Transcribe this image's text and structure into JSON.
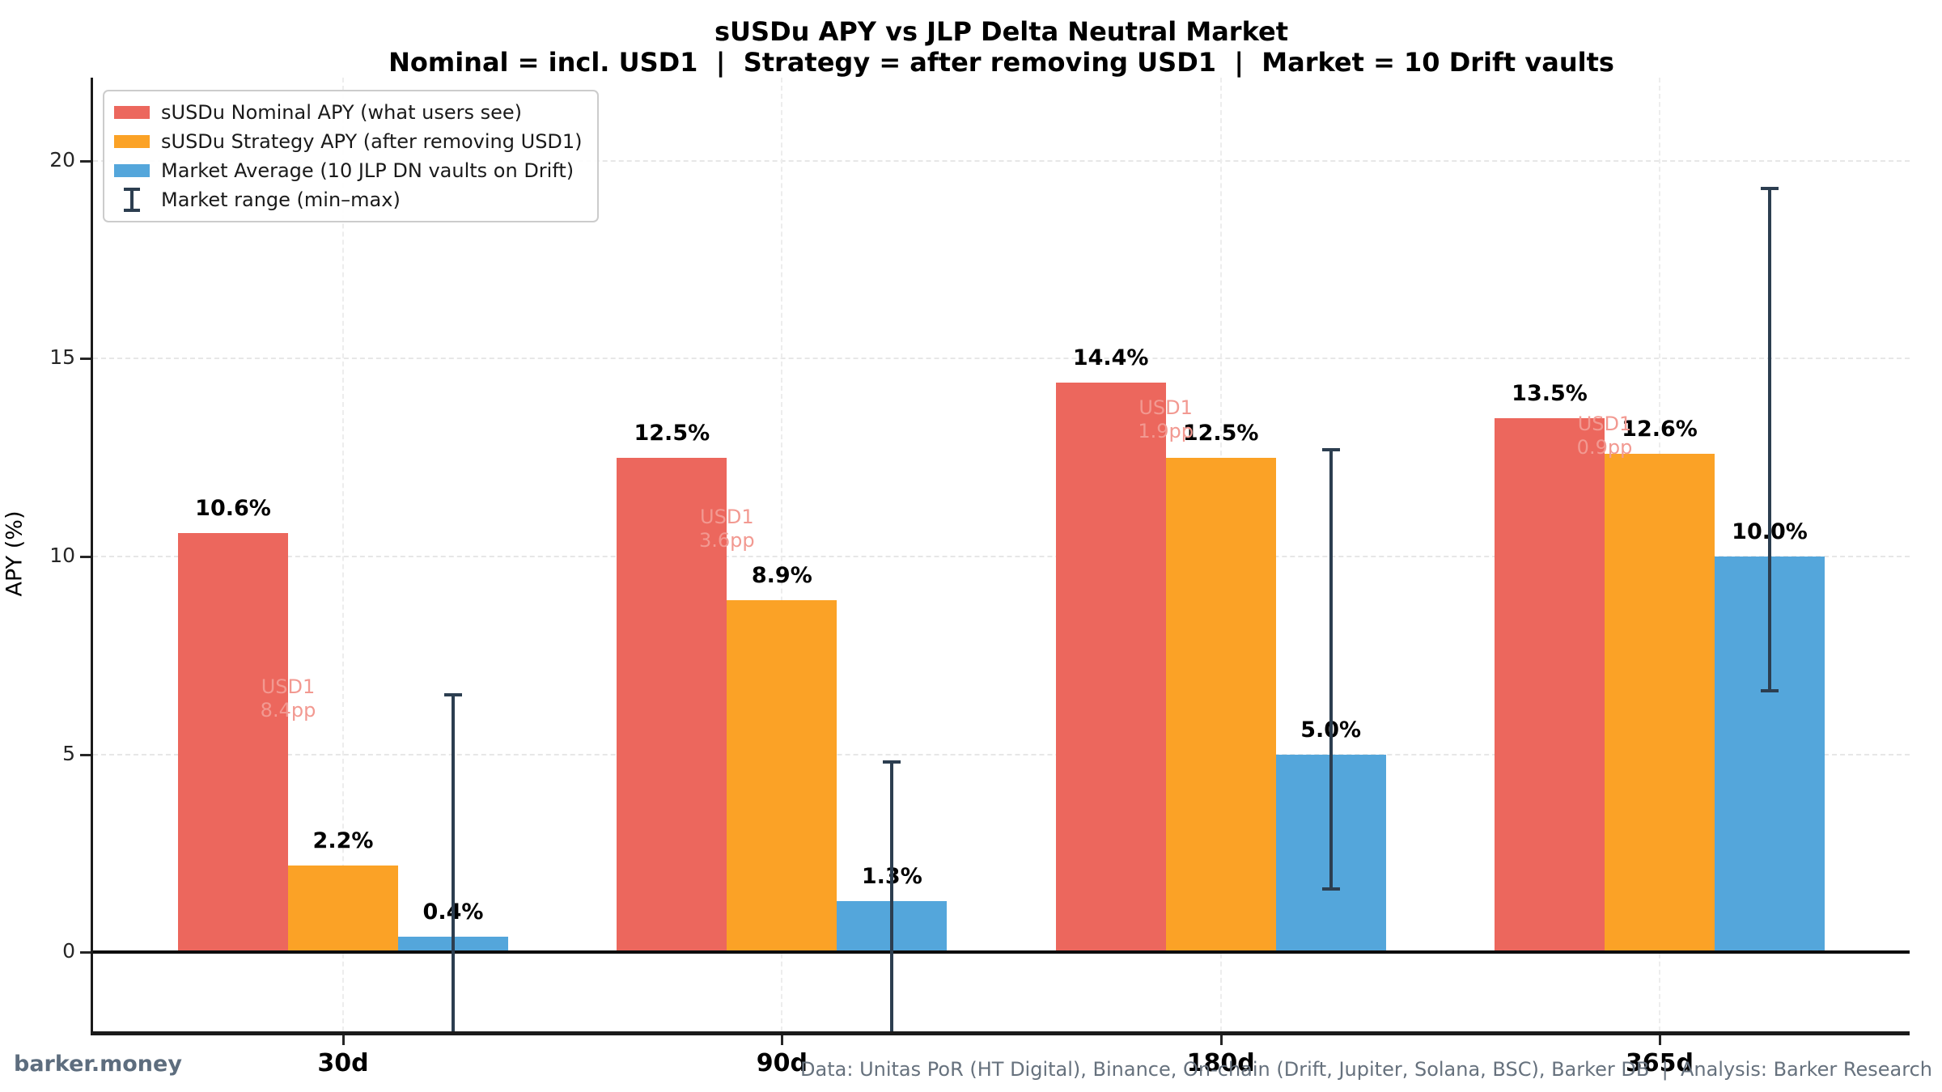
{
  "title": "sUSDu APY vs JLP Delta Neutral Market",
  "subtitle": "Nominal = incl. USD1  |  Strategy = after removing USD1  |  Market = 10 Drift vaults",
  "ylabel": "APY (%)",
  "footer": {
    "brand": "barker.money",
    "credits": "Data: Unitas PoR (HT Digital), Binance, On-chain (Drift, Jupiter, Solana, BSC), Barker DB  |  Analysis: Barker Research"
  },
  "colors": {
    "nominal": "#ec675d",
    "strategy": "#fba226",
    "market": "#54a6db",
    "errorbar": "#2c3e50",
    "annotation": "#f29991",
    "zero_line": "#0d0d0d",
    "spine": "#1a1a1a",
    "grid": "#e7e7e7"
  },
  "legend": {
    "items": [
      {
        "type": "patch",
        "key": "nominal",
        "color": "#ec675d",
        "label": "sUSDu Nominal APY (what users see)"
      },
      {
        "type": "patch",
        "key": "strategy",
        "color": "#fba226",
        "label": "sUSDu Strategy APY (after removing USD1)"
      },
      {
        "type": "patch",
        "key": "market",
        "color": "#54a6db",
        "label": "Market Average (10 JLP DN vaults on Drift)"
      },
      {
        "type": "errorbar",
        "key": "range",
        "color": "#2c3e50",
        "label": "Market range (min–max)"
      }
    ]
  },
  "chart_data": {
    "type": "bar",
    "title": "sUSDu APY vs JLP Delta Neutral Market",
    "xlabel": "",
    "ylabel": "APY (%)",
    "categories": [
      "30d",
      "90d",
      "180d",
      "365d"
    ],
    "series": [
      {
        "key": "nominal",
        "name": "sUSDu Nominal APY (what users see)",
        "color": "#ec675d",
        "values": [
          10.6,
          12.5,
          14.4,
          13.5
        ]
      },
      {
        "key": "strategy",
        "name": "sUSDu Strategy APY (after removing USD1)",
        "color": "#fba226",
        "values": [
          2.2,
          8.9,
          12.5,
          12.6
        ]
      },
      {
        "key": "market",
        "name": "Market Average (10 JLP DN vaults on Drift)",
        "color": "#54a6db",
        "values": [
          0.4,
          1.3,
          5.0,
          10.0
        ]
      }
    ],
    "error_bars": {
      "attached_to": "market",
      "label": "Market range (min–max)",
      "ranges": [
        {
          "category": "30d",
          "max": 6.5,
          "min": null,
          "min_clipped_below_axis": true
        },
        {
          "category": "90d",
          "max": 4.8,
          "min": null,
          "min_clipped_below_axis": true
        },
        {
          "category": "180d",
          "max": 12.7,
          "min": 1.6,
          "min_clipped_below_axis": false
        },
        {
          "category": "365d",
          "max": 19.3,
          "min": 6.6,
          "min_clipped_below_axis": false
        }
      ]
    },
    "annotations": [
      {
        "category": "30d",
        "lines": [
          "USD1",
          "8.4pp"
        ]
      },
      {
        "category": "90d",
        "lines": [
          "USD1",
          "3.6pp"
        ]
      },
      {
        "category": "180d",
        "lines": [
          "USD1",
          "1.9pp"
        ]
      },
      {
        "category": "365d",
        "lines": [
          "USD1",
          "0.9pp"
        ]
      }
    ],
    "yticks": [
      0,
      5,
      10,
      15,
      20
    ],
    "ylim": [
      -2,
      22.1
    ],
    "grid": true,
    "legend_position": "upper left"
  }
}
